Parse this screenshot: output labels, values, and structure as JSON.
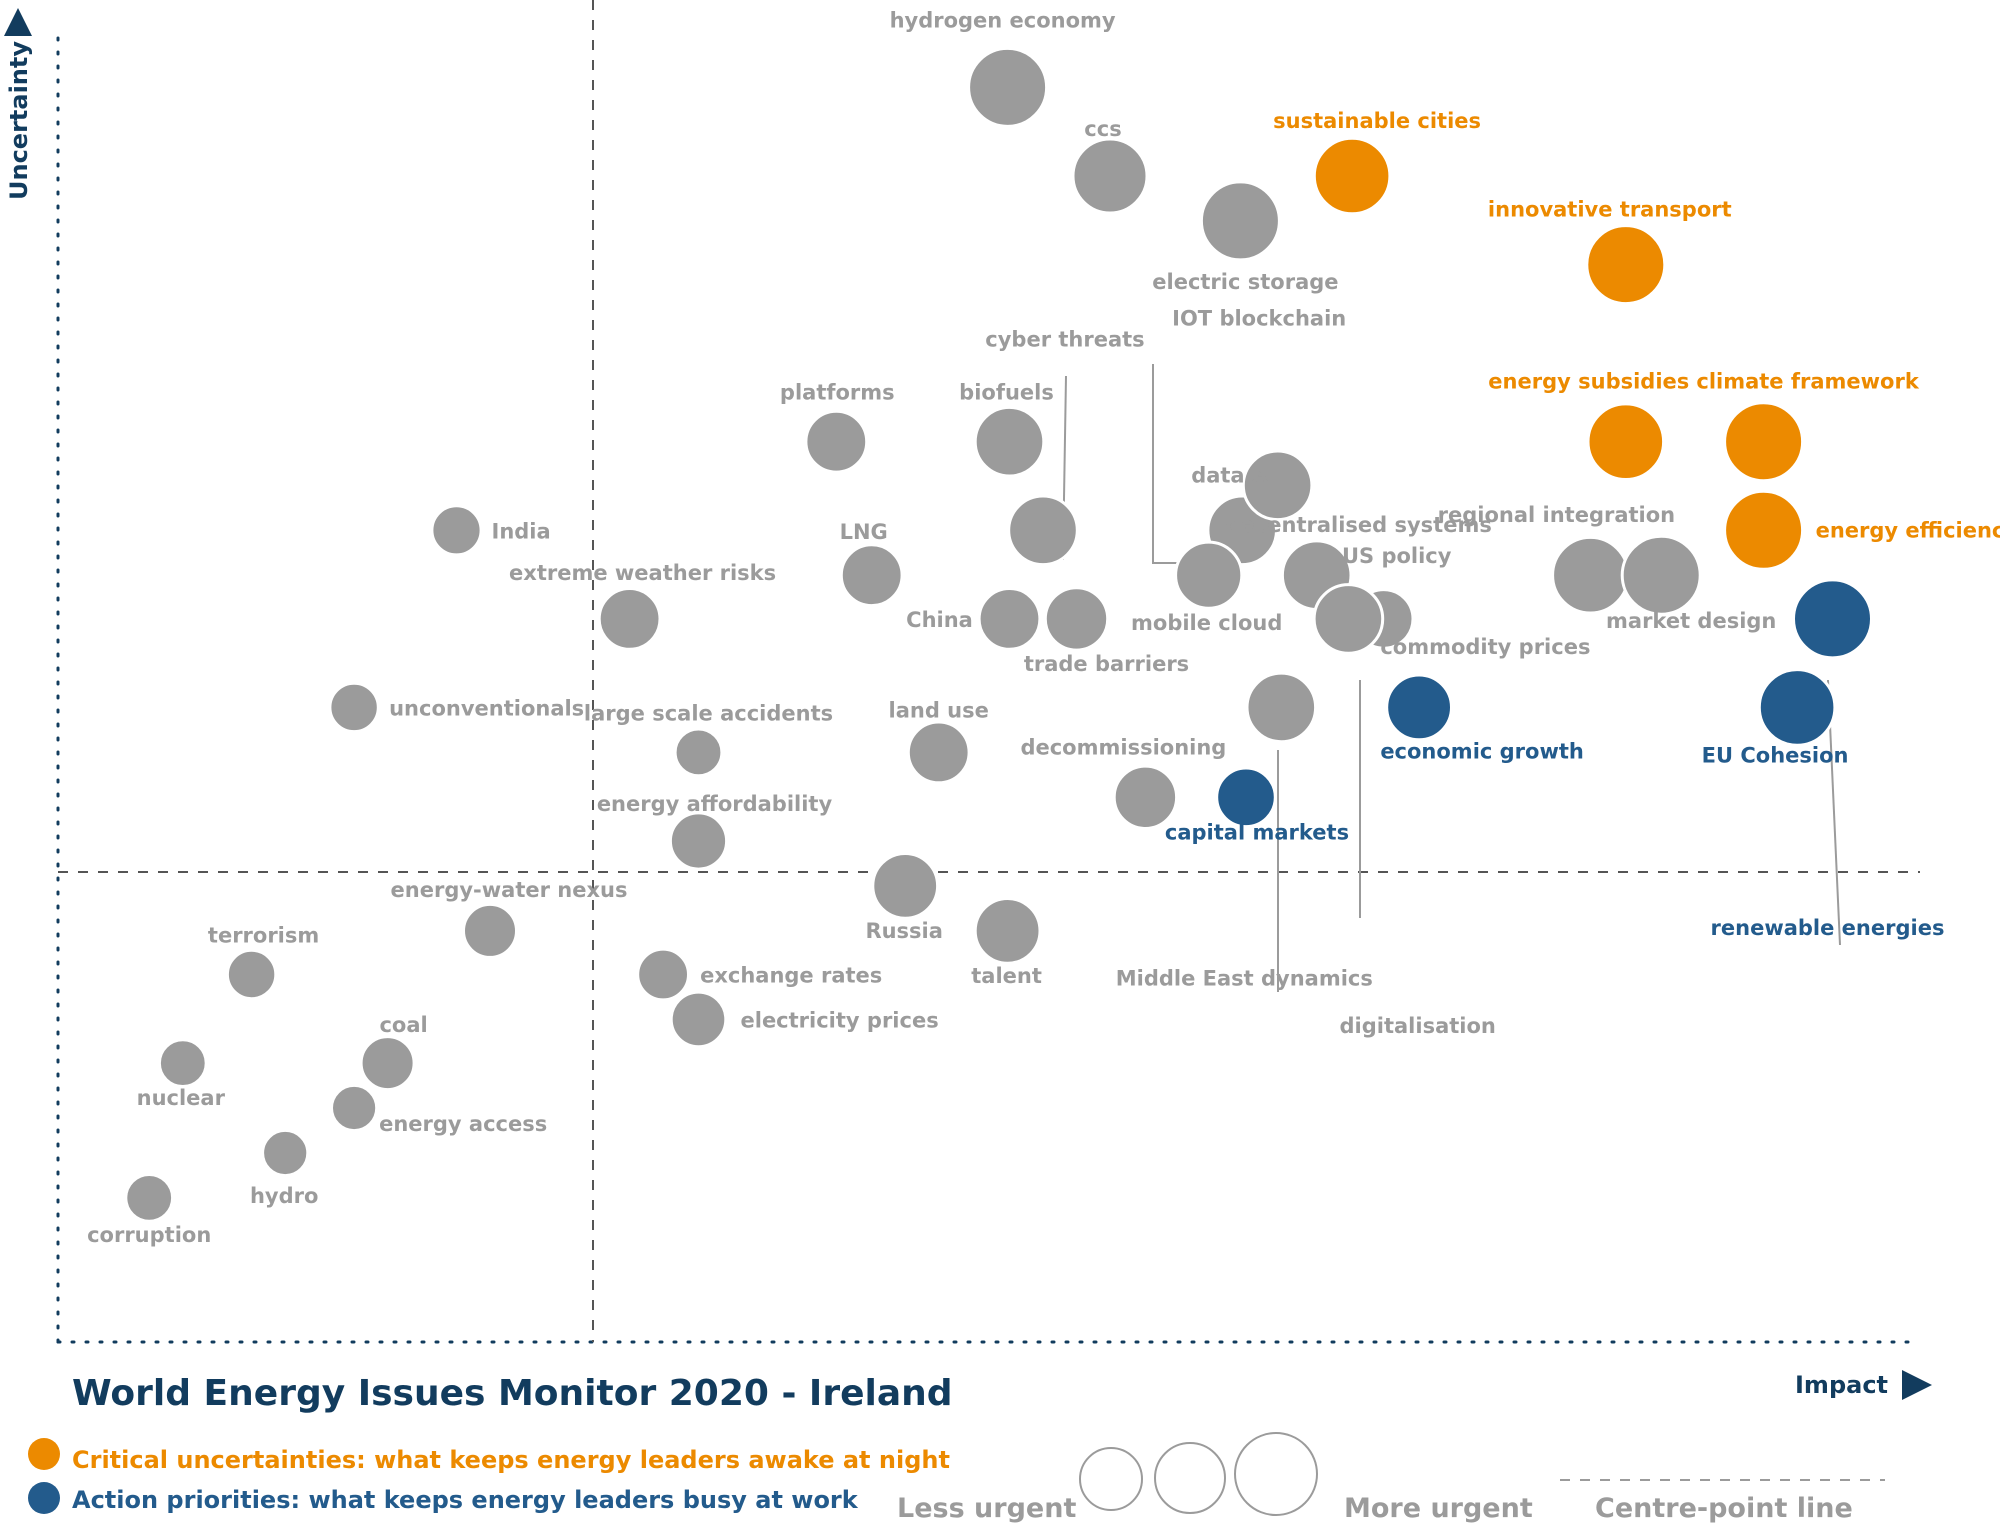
{
  "chart_data": {
    "type": "scatter",
    "title": "World Energy Issues Monitor 2020 - Ireland",
    "xlabel": "Impact",
    "ylabel": "Uncertainty",
    "xlim": [
      0,
      1
    ],
    "ylim": [
      0,
      1
    ],
    "centre_point": {
      "x": 0.29,
      "y": 0.355
    },
    "colors": {
      "grey": "#9b9b9b",
      "orange": "#ec8a00",
      "blue": "#235b8c",
      "navy": "#123c5e"
    },
    "legend": {
      "critical": "Critical uncertainties: what keeps energy leaders awake at night",
      "action": "Action priorities: what keeps energy leaders busy at work",
      "less_urgent": "Less urgent",
      "more_urgent": "More urgent",
      "centre_line": "Centre-point  line"
    },
    "points": [
      {
        "name": "hydrogen economy",
        "x": 0.51,
        "y": 0.949,
        "size": 1.0,
        "category": "grey"
      },
      {
        "name": "ccs",
        "x": 0.565,
        "y": 0.882,
        "size": 0.95,
        "category": "grey"
      },
      {
        "name": "sustainable cities",
        "x": 0.695,
        "y": 0.882,
        "size": 0.97,
        "category": "orange"
      },
      {
        "name": "electric storage",
        "x": 0.635,
        "y": 0.848,
        "size": 1.0,
        "category": "grey"
      },
      {
        "name": "innovative transport",
        "x": 0.842,
        "y": 0.815,
        "size": 1.0,
        "category": "orange"
      },
      {
        "name": "platforms",
        "x": 0.418,
        "y": 0.681,
        "size": 0.78,
        "category": "grey"
      },
      {
        "name": "biofuels",
        "x": 0.511,
        "y": 0.681,
        "size": 0.88,
        "category": "grey"
      },
      {
        "name": "energy subsidies",
        "x": 0.842,
        "y": 0.681,
        "size": 0.97,
        "category": "orange"
      },
      {
        "name": "climate framework",
        "x": 0.916,
        "y": 0.681,
        "size": 1.0,
        "category": "orange"
      },
      {
        "name": "cyber threats",
        "x": 0.529,
        "y": 0.614,
        "size": 0.88,
        "category": "grey"
      },
      {
        "name": "IOT blockchain",
        "x": 0.636,
        "y": 0.614,
        "size": 0.88,
        "category": "grey"
      },
      {
        "name": "data AI",
        "x": 0.655,
        "y": 0.648,
        "size": 0.88,
        "category": "grey"
      },
      {
        "name": "energy efficiency",
        "x": 0.916,
        "y": 0.614,
        "size": 1.0,
        "category": "orange"
      },
      {
        "name": "India",
        "x": 0.214,
        "y": 0.614,
        "size": 0.63,
        "category": "grey"
      },
      {
        "name": "LNG",
        "x": 0.437,
        "y": 0.58,
        "size": 0.78,
        "category": "grey"
      },
      {
        "name": "mobile cloud",
        "x": 0.618,
        "y": 0.58,
        "size": 0.85,
        "category": "grey"
      },
      {
        "name": "decentralised systems",
        "x": 0.676,
        "y": 0.58,
        "size": 0.88,
        "category": "grey"
      },
      {
        "name": "regional integration",
        "x": 0.823,
        "y": 0.58,
        "size": 0.97,
        "category": "grey"
      },
      {
        "name": "market design",
        "x": 0.861,
        "y": 0.58,
        "size": 1.0,
        "category": "grey"
      },
      {
        "name": "extreme weather risks",
        "x": 0.307,
        "y": 0.547,
        "size": 0.78,
        "category": "grey"
      },
      {
        "name": "China",
        "x": 0.511,
        "y": 0.547,
        "size": 0.78,
        "category": "grey"
      },
      {
        "name": "trade barriers",
        "x": 0.547,
        "y": 0.547,
        "size": 0.8,
        "category": "grey"
      },
      {
        "name": "US policy",
        "x": 0.712,
        "y": 0.547,
        "size": 0.75,
        "category": "grey"
      },
      {
        "name": "commodity prices",
        "x": 0.693,
        "y": 0.547,
        "size": 0.88,
        "category": "grey"
      },
      {
        "name": "renewable energies",
        "x": 0.953,
        "y": 0.547,
        "size": 1.0,
        "category": "blue"
      },
      {
        "name": "unconventionals",
        "x": 0.159,
        "y": 0.48,
        "size": 0.62,
        "category": "grey"
      },
      {
        "name": "Middle East dynamics",
        "x": 0.657,
        "y": 0.48,
        "size": 0.88,
        "category": "grey"
      },
      {
        "name": "economic growth",
        "x": 0.731,
        "y": 0.48,
        "size": 0.83,
        "category": "blue"
      },
      {
        "name": "EU Cohesion",
        "x": 0.934,
        "y": 0.48,
        "size": 0.97,
        "category": "blue"
      },
      {
        "name": "large scale accidents",
        "x": 0.344,
        "y": 0.446,
        "size": 0.6,
        "category": "grey"
      },
      {
        "name": "land use",
        "x": 0.473,
        "y": 0.446,
        "size": 0.78,
        "category": "grey"
      },
      {
        "name": "decommissioning",
        "x": 0.584,
        "y": 0.412,
        "size": 0.8,
        "category": "grey"
      },
      {
        "name": "capital markets",
        "x": 0.638,
        "y": 0.412,
        "size": 0.75,
        "category": "blue"
      },
      {
        "name": "energy affordability",
        "x": 0.344,
        "y": 0.379,
        "size": 0.72,
        "category": "grey"
      },
      {
        "name": "Russia",
        "x": 0.455,
        "y": 0.345,
        "size": 0.83,
        "category": "grey"
      },
      {
        "name": "talent",
        "x": 0.51,
        "y": 0.311,
        "size": 0.83,
        "category": "grey"
      },
      {
        "name": "digitalisation",
        "x": 0.473,
        "y": 0.311,
        "size": 0.0,
        "category": "none"
      },
      {
        "name": "energy-water nexus",
        "x": 0.232,
        "y": 0.311,
        "size": 0.68,
        "category": "grey"
      },
      {
        "name": "terrorism",
        "x": 0.104,
        "y": 0.278,
        "size": 0.62,
        "category": "grey"
      },
      {
        "name": "exchange rates",
        "x": 0.325,
        "y": 0.278,
        "size": 0.65,
        "category": "grey"
      },
      {
        "name": "electricity prices",
        "x": 0.344,
        "y": 0.244,
        "size": 0.7,
        "category": "grey"
      },
      {
        "name": "nuclear",
        "x": 0.067,
        "y": 0.211,
        "size": 0.6,
        "category": "grey"
      },
      {
        "name": "coal",
        "x": 0.177,
        "y": 0.211,
        "size": 0.68,
        "category": "grey"
      },
      {
        "name": "energy access",
        "x": 0.159,
        "y": 0.177,
        "size": 0.58,
        "category": "grey"
      },
      {
        "name": "hydro",
        "x": 0.122,
        "y": 0.143,
        "size": 0.58,
        "category": "grey"
      },
      {
        "name": "corruption",
        "x": 0.049,
        "y": 0.109,
        "size": 0.6,
        "category": "grey"
      }
    ]
  }
}
